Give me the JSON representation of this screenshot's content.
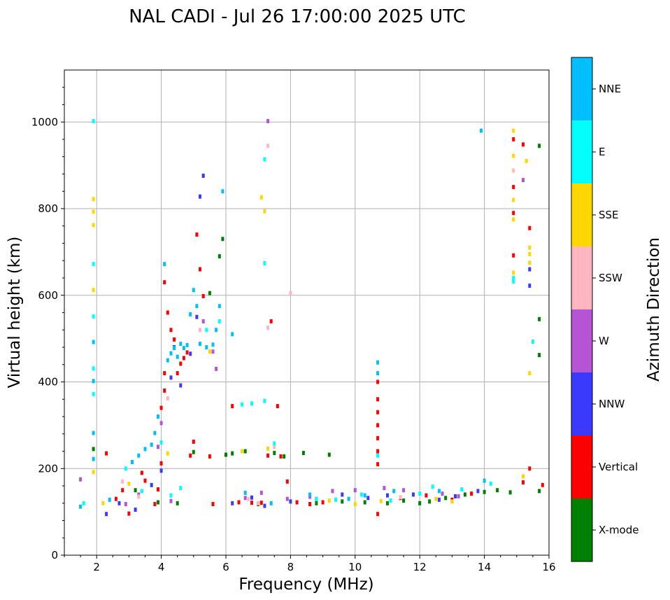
{
  "colors": {
    "X-mode": "#008000",
    "Vertical": "#ff0000",
    "NNW": "#3a3aff",
    "W": "#b555d6",
    "SSW": "#ffb6c1",
    "SSE": "#ffd700",
    "E": "#00ffff",
    "NNE": "#00bfff"
  },
  "chart_data": {
    "type": "scatter",
    "title": "NAL CADI - Jul 26 17:00:00 2025 UTC",
    "xlabel": "Frequency (MHz)",
    "ylabel": "Virtual height (km)",
    "xlim": [
      1,
      16
    ],
    "ylim": [
      0,
      1120
    ],
    "xticks": [
      2,
      4,
      6,
      8,
      10,
      12,
      14,
      16
    ],
    "yticks": [
      0,
      200,
      400,
      600,
      800,
      1000
    ],
    "xtick_labels": [
      "2",
      "4",
      "6",
      "8",
      "10",
      "12",
      "14",
      "16"
    ],
    "ytick_labels": [
      "0",
      "200",
      "400",
      "600",
      "800",
      "1000"
    ],
    "grid": true,
    "colorbar_label": "Azimuth Direction",
    "categories": [
      "X-mode",
      "Vertical",
      "NNW",
      "W",
      "SSW",
      "SSE",
      "E",
      "NNE"
    ],
    "series": [
      {
        "name": "X-mode",
        "points": [
          [
            1.9,
            245
          ],
          [
            3.2,
            150
          ],
          [
            3.9,
            122
          ],
          [
            4.5,
            120
          ],
          [
            5.0,
            238
          ],
          [
            5.5,
            605
          ],
          [
            5.9,
            730
          ],
          [
            5.8,
            690
          ],
          [
            6.0,
            232
          ],
          [
            6.2,
            235
          ],
          [
            6.6,
            240
          ],
          [
            7.0,
            118
          ],
          [
            7.5,
            236
          ],
          [
            7.8,
            228
          ],
          [
            8.4,
            236
          ],
          [
            8.8,
            120
          ],
          [
            9.2,
            232
          ],
          [
            9.6,
            124
          ],
          [
            10.3,
            122
          ],
          [
            11.0,
            120
          ],
          [
            11.5,
            126
          ],
          [
            12.0,
            120
          ],
          [
            12.3,
            124
          ],
          [
            12.8,
            132
          ],
          [
            13.4,
            140
          ],
          [
            14.0,
            146
          ],
          [
            14.4,
            150
          ],
          [
            14.8,
            145
          ],
          [
            15.7,
            945
          ],
          [
            15.7,
            545
          ],
          [
            15.7,
            462
          ],
          [
            15.7,
            148
          ]
        ]
      },
      {
        "name": "Vertical",
        "points": [
          [
            2.3,
            235
          ],
          [
            2.6,
            130
          ],
          [
            2.8,
            150
          ],
          [
            3.0,
            96
          ],
          [
            3.4,
            190
          ],
          [
            3.5,
            172
          ],
          [
            3.8,
            118
          ],
          [
            3.9,
            152
          ],
          [
            4.0,
            212
          ],
          [
            4.0,
            340
          ],
          [
            4.1,
            380
          ],
          [
            4.1,
            420
          ],
          [
            4.1,
            630
          ],
          [
            4.2,
            560
          ],
          [
            4.3,
            520
          ],
          [
            4.4,
            498
          ],
          [
            4.5,
            420
          ],
          [
            4.6,
            442
          ],
          [
            4.7,
            455
          ],
          [
            4.8,
            468
          ],
          [
            4.9,
            230
          ],
          [
            5.0,
            262
          ],
          [
            5.1,
            740
          ],
          [
            5.2,
            660
          ],
          [
            5.3,
            598
          ],
          [
            5.5,
            228
          ],
          [
            5.6,
            118
          ],
          [
            6.2,
            344
          ],
          [
            6.4,
            122
          ],
          [
            6.8,
            121
          ],
          [
            7.1,
            121
          ],
          [
            7.3,
            230
          ],
          [
            7.6,
            344
          ],
          [
            7.4,
            540
          ],
          [
            7.7,
            228
          ],
          [
            7.9,
            170
          ],
          [
            8.2,
            122
          ],
          [
            8.6,
            118
          ],
          [
            9.0,
            122
          ],
          [
            10.7,
            95
          ],
          [
            10.7,
            210
          ],
          [
            10.7,
            240
          ],
          [
            10.7,
            270
          ],
          [
            10.7,
            300
          ],
          [
            10.7,
            330
          ],
          [
            10.7,
            360
          ],
          [
            10.7,
            400
          ],
          [
            11.4,
            132
          ],
          [
            12.2,
            138
          ],
          [
            13.0,
            128
          ],
          [
            13.6,
            142
          ],
          [
            14.9,
            960
          ],
          [
            14.9,
            850
          ],
          [
            14.9,
            790
          ],
          [
            14.9,
            692
          ],
          [
            15.2,
            948
          ],
          [
            15.4,
            755
          ],
          [
            15.4,
            200
          ],
          [
            15.2,
            168
          ],
          [
            15.8,
            162
          ]
        ]
      },
      {
        "name": "NNW",
        "points": [
          [
            2.3,
            95
          ],
          [
            2.7,
            120
          ],
          [
            3.2,
            105
          ],
          [
            3.7,
            162
          ],
          [
            4.0,
            195
          ],
          [
            4.3,
            410
          ],
          [
            4.4,
            480
          ],
          [
            4.6,
            392
          ],
          [
            4.9,
            465
          ],
          [
            5.1,
            550
          ],
          [
            5.2,
            828
          ],
          [
            5.3,
            876
          ],
          [
            6.2,
            120
          ],
          [
            6.8,
            133
          ],
          [
            7.2,
            114
          ],
          [
            8.0,
            124
          ],
          [
            8.8,
            130
          ],
          [
            9.6,
            140
          ],
          [
            10.4,
            132
          ],
          [
            11.0,
            138
          ],
          [
            11.8,
            140
          ],
          [
            12.6,
            128
          ],
          [
            13.1,
            136
          ],
          [
            13.8,
            148
          ],
          [
            15.4,
            660
          ],
          [
            15.4,
            622
          ]
        ]
      },
      {
        "name": "W",
        "points": [
          [
            1.5,
            175
          ],
          [
            2.9,
            118
          ],
          [
            3.3,
            140
          ],
          [
            3.9,
            250
          ],
          [
            4.0,
            305
          ],
          [
            4.3,
            125
          ],
          [
            5.3,
            540
          ],
          [
            5.6,
            470
          ],
          [
            5.7,
            430
          ],
          [
            6.6,
            132
          ],
          [
            7.1,
            144
          ],
          [
            7.3,
            1002
          ],
          [
            7.9,
            130
          ],
          [
            8.6,
            135
          ],
          [
            9.3,
            148
          ],
          [
            10.0,
            150
          ],
          [
            10.9,
            155
          ],
          [
            11.5,
            150
          ],
          [
            12.7,
            142
          ],
          [
            13.2,
            136
          ],
          [
            15.2,
            866
          ]
        ]
      },
      {
        "name": "SSW",
        "points": [
          [
            2.8,
            170
          ],
          [
            3.3,
            135
          ],
          [
            4.2,
            362
          ],
          [
            5.2,
            520
          ],
          [
            6.7,
            130
          ],
          [
            7.0,
            120
          ],
          [
            7.3,
            945
          ],
          [
            7.3,
            525
          ],
          [
            7.5,
            250
          ],
          [
            8.0,
            605
          ],
          [
            11.4,
            134
          ],
          [
            14.9,
            888
          ]
        ]
      },
      {
        "name": "SSE",
        "points": [
          [
            1.9,
            822
          ],
          [
            1.9,
            793
          ],
          [
            1.9,
            762
          ],
          [
            1.9,
            612
          ],
          [
            1.9,
            192
          ],
          [
            2.2,
            120
          ],
          [
            3.0,
            165
          ],
          [
            4.2,
            235
          ],
          [
            5.5,
            470
          ],
          [
            6.5,
            240
          ],
          [
            7.1,
            826
          ],
          [
            7.2,
            794
          ],
          [
            7.3,
            246
          ],
          [
            9.2,
            126
          ],
          [
            10.0,
            118
          ],
          [
            10.8,
            125
          ],
          [
            12.5,
            130
          ],
          [
            13.0,
            124
          ],
          [
            14.9,
            980
          ],
          [
            14.9,
            922
          ],
          [
            14.9,
            820
          ],
          [
            14.9,
            775
          ],
          [
            14.9,
            652
          ],
          [
            15.4,
            710
          ],
          [
            15.4,
            695
          ],
          [
            15.4,
            675
          ],
          [
            15.4,
            420
          ],
          [
            15.3,
            910
          ],
          [
            15.2,
            182
          ]
        ]
      },
      {
        "name": "E",
        "points": [
          [
            1.6,
            120
          ],
          [
            1.9,
            1002
          ],
          [
            1.9,
            672
          ],
          [
            1.9,
            551
          ],
          [
            1.9,
            431
          ],
          [
            1.9,
            372
          ],
          [
            2.9,
            200
          ],
          [
            3.4,
            148
          ],
          [
            4.0,
            260
          ],
          [
            4.3,
            138
          ],
          [
            4.6,
            155
          ],
          [
            5.4,
            520
          ],
          [
            5.8,
            540
          ],
          [
            6.5,
            348
          ],
          [
            6.8,
            350
          ],
          [
            7.2,
            356
          ],
          [
            7.2,
            914
          ],
          [
            7.2,
            674
          ],
          [
            7.5,
            258
          ],
          [
            8.8,
            130
          ],
          [
            9.4,
            128
          ],
          [
            10.2,
            140
          ],
          [
            10.7,
            230
          ],
          [
            11.1,
            126
          ],
          [
            12.0,
            142
          ],
          [
            12.4,
            158
          ],
          [
            13.3,
            152
          ],
          [
            14.2,
            165
          ],
          [
            14.9,
            640
          ],
          [
            14.9,
            632
          ],
          [
            15.5,
            493
          ]
        ]
      },
      {
        "name": "NNE",
        "points": [
          [
            1.5,
            112
          ],
          [
            1.9,
            492
          ],
          [
            1.9,
            402
          ],
          [
            1.9,
            282
          ],
          [
            1.9,
            222
          ],
          [
            2.4,
            128
          ],
          [
            3.1,
            215
          ],
          [
            3.3,
            230
          ],
          [
            3.5,
            245
          ],
          [
            3.7,
            255
          ],
          [
            3.8,
            282
          ],
          [
            3.9,
            320
          ],
          [
            4.1,
            672
          ],
          [
            4.2,
            450
          ],
          [
            4.3,
            466
          ],
          [
            4.4,
            478
          ],
          [
            4.5,
            458
          ],
          [
            4.6,
            488
          ],
          [
            4.7,
            478
          ],
          [
            4.8,
            485
          ],
          [
            4.9,
            556
          ],
          [
            5.0,
            612
          ],
          [
            5.1,
            575
          ],
          [
            5.2,
            488
          ],
          [
            5.4,
            480
          ],
          [
            5.6,
            486
          ],
          [
            5.7,
            520
          ],
          [
            5.8,
            575
          ],
          [
            5.9,
            840
          ],
          [
            6.2,
            510
          ],
          [
            6.6,
            144
          ],
          [
            7.4,
            120
          ],
          [
            8.6,
            140
          ],
          [
            9.8,
            130
          ],
          [
            10.3,
            138
          ],
          [
            10.7,
            445
          ],
          [
            10.7,
            420
          ],
          [
            11.2,
            148
          ],
          [
            12.6,
            148
          ],
          [
            13.9,
            980
          ],
          [
            14.0,
            172
          ]
        ]
      }
    ]
  }
}
